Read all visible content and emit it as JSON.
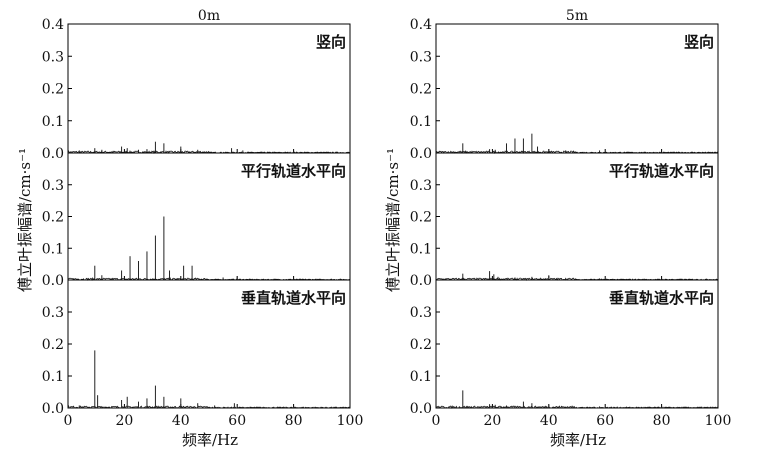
{
  "figure": {
    "xlabel": "频率/Hz",
    "ylabel": "傅立叶振幅谱/cm·s⁻¹"
  },
  "chart_data": [
    {
      "type": "line",
      "column_title": "0m",
      "panels": [
        {
          "label": "竖向",
          "xlim": [
            0,
            100
          ],
          "ylim": [
            0,
            0.4
          ],
          "yticks": [
            "0.0",
            "0.1",
            "0.2",
            "0.3",
            "0.4"
          ],
          "xticks": [],
          "peaks": [
            {
              "x": 4,
              "y": 0.008
            },
            {
              "x": 9.5,
              "y": 0.015
            },
            {
              "x": 12,
              "y": 0.01
            },
            {
              "x": 19,
              "y": 0.02
            },
            {
              "x": 21,
              "y": 0.015
            },
            {
              "x": 25,
              "y": 0.01
            },
            {
              "x": 28,
              "y": 0.012
            },
            {
              "x": 31,
              "y": 0.035
            },
            {
              "x": 34,
              "y": 0.03
            },
            {
              "x": 40,
              "y": 0.02
            },
            {
              "x": 46,
              "y": 0.01
            },
            {
              "x": 58,
              "y": 0.015
            },
            {
              "x": 62,
              "y": 0.008
            },
            {
              "x": 80,
              "y": 0.005
            }
          ]
        },
        {
          "label": "平行轨道水平向",
          "xlim": [
            0,
            100
          ],
          "ylim": [
            0,
            0.4
          ],
          "yticks": [
            "0.0",
            "0.1",
            "0.2",
            "0.3"
          ],
          "xticks": [],
          "peaks": [
            {
              "x": 2,
              "y": 0.005
            },
            {
              "x": 9.5,
              "y": 0.045
            },
            {
              "x": 12,
              "y": 0.015
            },
            {
              "x": 19,
              "y": 0.03
            },
            {
              "x": 22,
              "y": 0.075
            },
            {
              "x": 25,
              "y": 0.06
            },
            {
              "x": 28,
              "y": 0.09
            },
            {
              "x": 31,
              "y": 0.14
            },
            {
              "x": 34,
              "y": 0.2
            },
            {
              "x": 36,
              "y": 0.03
            },
            {
              "x": 41,
              "y": 0.045
            },
            {
              "x": 44,
              "y": 0.045
            },
            {
              "x": 55,
              "y": 0.008
            },
            {
              "x": 60,
              "y": 0.012
            },
            {
              "x": 80,
              "y": 0.005
            }
          ]
        },
        {
          "label": "垂直轨道水平向",
          "xlim": [
            0,
            100
          ],
          "ylim": [
            0,
            0.4
          ],
          "yticks": [
            "0.0",
            "0.1",
            "0.2",
            "0.3"
          ],
          "xticks": [
            "0",
            "20",
            "40",
            "60",
            "80",
            "100"
          ],
          "peaks": [
            {
              "x": 4,
              "y": 0.008
            },
            {
              "x": 9.5,
              "y": 0.18
            },
            {
              "x": 10.5,
              "y": 0.04
            },
            {
              "x": 19,
              "y": 0.025
            },
            {
              "x": 21,
              "y": 0.035
            },
            {
              "x": 25,
              "y": 0.02
            },
            {
              "x": 28,
              "y": 0.03
            },
            {
              "x": 31,
              "y": 0.07
            },
            {
              "x": 34,
              "y": 0.035
            },
            {
              "x": 40,
              "y": 0.03
            },
            {
              "x": 46,
              "y": 0.015
            },
            {
              "x": 52,
              "y": 0.008
            },
            {
              "x": 59,
              "y": 0.015
            },
            {
              "x": 80,
              "y": 0.005
            }
          ]
        }
      ]
    },
    {
      "type": "line",
      "column_title": "5m",
      "panels": [
        {
          "label": "竖向",
          "xlim": [
            0,
            100
          ],
          "ylim": [
            0,
            0.4
          ],
          "yticks": [
            "0.0",
            "0.1",
            "0.2",
            "0.3",
            "0.4"
          ],
          "xticks": [],
          "peaks": [
            {
              "x": 9.5,
              "y": 0.03
            },
            {
              "x": 19,
              "y": 0.012
            },
            {
              "x": 21,
              "y": 0.01
            },
            {
              "x": 25,
              "y": 0.03
            },
            {
              "x": 28,
              "y": 0.045
            },
            {
              "x": 31,
              "y": 0.045
            },
            {
              "x": 34,
              "y": 0.06
            },
            {
              "x": 36,
              "y": 0.02
            },
            {
              "x": 40,
              "y": 0.012
            },
            {
              "x": 46,
              "y": 0.008
            },
            {
              "x": 58,
              "y": 0.008
            }
          ]
        },
        {
          "label": "平行轨道水平向",
          "xlim": [
            0,
            100
          ],
          "ylim": [
            0,
            0.4
          ],
          "yticks": [
            "0.0",
            "0.1",
            "0.2",
            "0.3"
          ],
          "xticks": [],
          "peaks": [
            {
              "x": 9.5,
              "y": 0.02
            },
            {
              "x": 19,
              "y": 0.028
            },
            {
              "x": 20.5,
              "y": 0.018
            },
            {
              "x": 22,
              "y": 0.01
            },
            {
              "x": 28,
              "y": 0.008
            },
            {
              "x": 34,
              "y": 0.01
            },
            {
              "x": 40,
              "y": 0.015
            },
            {
              "x": 58,
              "y": 0.005
            }
          ]
        },
        {
          "label": "垂直轨道水平向",
          "xlim": [
            0,
            100
          ],
          "ylim": [
            0,
            0.4
          ],
          "yticks": [
            "0.0",
            "0.1",
            "0.2",
            "0.3"
          ],
          "xticks": [
            "0",
            "20",
            "40",
            "60",
            "80",
            "100"
          ],
          "peaks": [
            {
              "x": 9.5,
              "y": 0.055
            },
            {
              "x": 19,
              "y": 0.012
            },
            {
              "x": 21,
              "y": 0.01
            },
            {
              "x": 25,
              "y": 0.008
            },
            {
              "x": 31,
              "y": 0.02
            },
            {
              "x": 34,
              "y": 0.015
            },
            {
              "x": 40,
              "y": 0.01
            },
            {
              "x": 58,
              "y": 0.005
            }
          ]
        }
      ]
    }
  ]
}
